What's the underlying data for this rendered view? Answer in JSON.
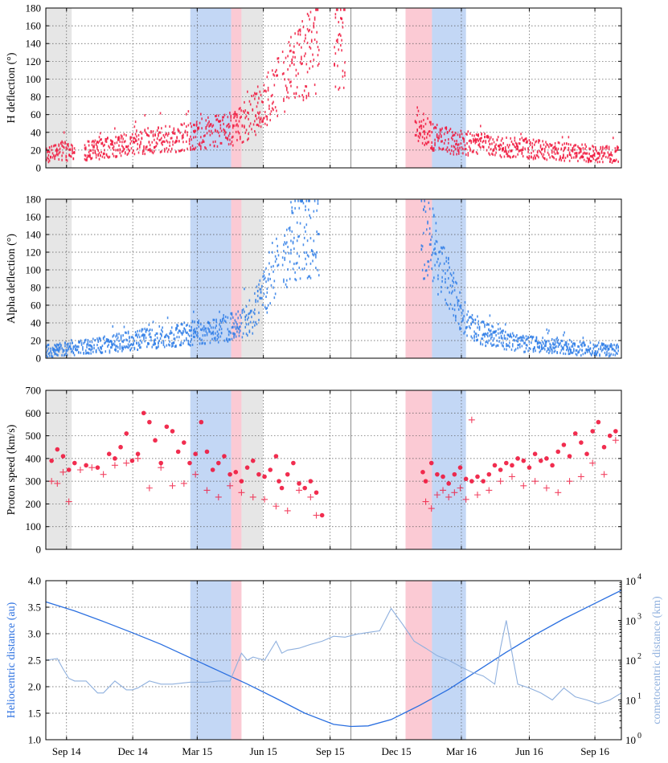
{
  "colors": {
    "proton": "#f0163c",
    "alpha": "#2e7de6",
    "helio_line": "#2a6fe0",
    "comet_line": "#8fb0de",
    "blue_band": "#bcd3f4",
    "pink_band": "#fbc4cf",
    "gray_band": "#e3e3e3",
    "perihelion_line": "#9a9a9a"
  },
  "chart_data": [
    {
      "type": "scatter",
      "panel": "h-deflection",
      "ylabel": "H deflection (°)",
      "ylim": [
        0,
        180
      ],
      "yticks": [
        "0",
        "20",
        "40",
        "60",
        "80",
        "100",
        "120",
        "140",
        "160",
        "180"
      ],
      "grid": true,
      "series": [
        {
          "color": "proton",
          "envelope": {
            "x": [
              0,
              0.03,
              0.04,
              0.06,
              0.1,
              0.15,
              0.2,
              0.25,
              0.28,
              0.31,
              0.33,
              0.36,
              0.38,
              0.41,
              0.44,
              0.47,
              0.48,
              0.5,
              0.53,
              0.55,
              0.57,
              0.59,
              0.61,
              0.63,
              0.65,
              0.67,
              0.7,
              0.75,
              0.8,
              0.85,
              0.9,
              0.95,
              0.99
            ],
            "y": [
              14,
              20,
              16,
              18,
              22,
              28,
              32,
              35,
              40,
              42,
              45,
              60,
              75,
              95,
              120,
              135,
              140,
              140,
              140,
              140,
              120,
              100,
              80,
              60,
              45,
              35,
              30,
              26,
              24,
              21,
              18,
              16,
              15
            ]
          },
          "gaps": [
            [
              0.05,
              0.065
            ],
            [
              0.405,
              0.41
            ],
            [
              0.475,
              0.5
            ],
            [
              0.52,
              0.64
            ]
          ]
        }
      ]
    },
    {
      "type": "scatter",
      "panel": "alpha-deflection",
      "ylabel": "Alpha deflection (°)",
      "ylim": [
        0,
        180
      ],
      "yticks": [
        "0",
        "20",
        "40",
        "60",
        "80",
        "100",
        "120",
        "140",
        "160",
        "180"
      ],
      "grid": true,
      "series": [
        {
          "color": "alpha",
          "envelope": {
            "x": [
              0,
              0.03,
              0.06,
              0.1,
              0.15,
              0.2,
              0.25,
              0.3,
              0.33,
              0.36,
              0.38,
              0.4,
              0.44,
              0.47,
              0.48,
              0.66,
              0.68,
              0.7,
              0.72,
              0.75,
              0.8,
              0.85,
              0.9,
              0.95,
              0.99
            ],
            "y": [
              8,
              10,
              12,
              15,
              20,
              24,
              28,
              32,
              36,
              50,
              80,
              110,
              140,
              140,
              135,
              140,
              110,
              80,
              50,
              30,
              20,
              15,
              12,
              10,
              9
            ]
          },
          "gaps": [
            [
              0.405,
              0.41
            ],
            [
              0.475,
              0.65
            ]
          ]
        }
      ]
    },
    {
      "type": "scatter",
      "panel": "proton-speed",
      "ylabel": "Proton speed (km/s)",
      "ylim": [
        0,
        700
      ],
      "yticks": [
        "0",
        "100",
        "200",
        "300",
        "400",
        "500",
        "600",
        "700"
      ],
      "grid": true,
      "series": [
        {
          "name": "",
          "marker": "circle",
          "color": "proton",
          "x": [
            0.01,
            0.02,
            0.03,
            0.04,
            0.05,
            0.07,
            0.09,
            0.11,
            0.12,
            0.13,
            0.14,
            0.15,
            0.16,
            0.17,
            0.18,
            0.19,
            0.2,
            0.21,
            0.22,
            0.23,
            0.24,
            0.25,
            0.26,
            0.27,
            0.28,
            0.29,
            0.3,
            0.31,
            0.32,
            0.33,
            0.34,
            0.35,
            0.36,
            0.37,
            0.38,
            0.39,
            0.4,
            0.405,
            0.41,
            0.42,
            0.43,
            0.44,
            0.45,
            0.46,
            0.47,
            0.48,
            0.655,
            0.66,
            0.67,
            0.68,
            0.69,
            0.7,
            0.71,
            0.72,
            0.73,
            0.74,
            0.75,
            0.76,
            0.77,
            0.78,
            0.79,
            0.8,
            0.81,
            0.82,
            0.83,
            0.84,
            0.85,
            0.86,
            0.87,
            0.88,
            0.89,
            0.9,
            0.91,
            0.92,
            0.93,
            0.94,
            0.95,
            0.96,
            0.97,
            0.98,
            0.99
          ],
          "y": [
            390,
            440,
            410,
            350,
            380,
            370,
            360,
            420,
            400,
            450,
            510,
            390,
            420,
            600,
            560,
            480,
            380,
            540,
            520,
            430,
            470,
            380,
            420,
            560,
            430,
            350,
            380,
            410,
            330,
            340,
            300,
            360,
            390,
            330,
            320,
            350,
            410,
            300,
            270,
            330,
            380,
            290,
            270,
            300,
            250,
            150,
            340,
            300,
            380,
            330,
            320,
            290,
            330,
            360,
            310,
            300,
            320,
            300,
            330,
            370,
            350,
            380,
            370,
            400,
            390,
            360,
            420,
            390,
            400,
            370,
            430,
            460,
            410,
            510,
            470,
            420,
            520,
            560,
            450,
            500,
            520
          ]
        },
        {
          "name": "",
          "marker": "plus",
          "color": "proton",
          "x": [
            0.01,
            0.02,
            0.03,
            0.04,
            0.06,
            0.08,
            0.1,
            0.12,
            0.14,
            0.16,
            0.18,
            0.2,
            0.22,
            0.24,
            0.26,
            0.28,
            0.3,
            0.32,
            0.34,
            0.36,
            0.38,
            0.4,
            0.42,
            0.44,
            0.46,
            0.47,
            0.66,
            0.67,
            0.68,
            0.69,
            0.7,
            0.71,
            0.72,
            0.73,
            0.74,
            0.75,
            0.77,
            0.79,
            0.81,
            0.83,
            0.85,
            0.87,
            0.89,
            0.91,
            0.93,
            0.95,
            0.97,
            0.99
          ],
          "y": [
            300,
            290,
            340,
            210,
            350,
            360,
            330,
            370,
            380,
            400,
            270,
            360,
            280,
            290,
            330,
            260,
            230,
            280,
            250,
            230,
            220,
            190,
            170,
            260,
            230,
            150,
            210,
            180,
            240,
            260,
            230,
            250,
            270,
            220,
            570,
            240,
            260,
            300,
            320,
            280,
            300,
            270,
            250,
            300,
            320,
            380,
            330,
            480
          ]
        }
      ]
    },
    {
      "type": "line",
      "panel": "distances",
      "ylabel": "Heliocentric distance (au)",
      "ylabel_right": "cometocentric distance (km)",
      "ylim": [
        1.0,
        4.0
      ],
      "yticks": [
        "1.0",
        "1.5",
        "2.0",
        "2.5",
        "3.0",
        "3.5",
        "4.0"
      ],
      "ylim_right": [
        1,
        10000
      ],
      "yscale_right": "log",
      "yticks_right": [
        "10",
        "10",
        "10",
        "10",
        "10"
      ],
      "yticks_right_exp": [
        "0",
        "1",
        "2",
        "3",
        "4"
      ],
      "xticks": [
        "Sep 14",
        "Dec 14",
        "Mar 15",
        "Jun 15",
        "Sep 15",
        "Dec 15",
        "Mar 16",
        "Jun 16",
        "Sep 16"
      ],
      "grid": true,
      "series": [
        {
          "axis": "left",
          "color": "helio_line",
          "x": [
            0.0,
            0.05,
            0.1,
            0.15,
            0.2,
            0.25,
            0.3,
            0.35,
            0.4,
            0.45,
            0.5,
            0.53,
            0.56,
            0.6,
            0.65,
            0.7,
            0.75,
            0.8,
            0.85,
            0.9,
            0.95,
            1.0
          ],
          "y": [
            3.6,
            3.43,
            3.23,
            3.02,
            2.8,
            2.55,
            2.3,
            2.05,
            1.78,
            1.5,
            1.29,
            1.25,
            1.26,
            1.38,
            1.65,
            1.95,
            2.3,
            2.65,
            2.98,
            3.28,
            3.55,
            3.82
          ]
        },
        {
          "axis": "right",
          "color": "comet_line",
          "x": [
            0.0,
            0.02,
            0.03,
            0.04,
            0.05,
            0.07,
            0.09,
            0.1,
            0.12,
            0.14,
            0.15,
            0.16,
            0.18,
            0.2,
            0.22,
            0.25,
            0.28,
            0.3,
            0.32,
            0.34,
            0.35,
            0.36,
            0.38,
            0.4,
            0.41,
            0.42,
            0.44,
            0.46,
            0.48,
            0.5,
            0.52,
            0.54,
            0.56,
            0.58,
            0.6,
            0.62,
            0.64,
            0.66,
            0.68,
            0.7,
            0.72,
            0.74,
            0.76,
            0.78,
            0.79,
            0.8,
            0.81,
            0.82,
            0.84,
            0.86,
            0.88,
            0.9,
            0.92,
            0.94,
            0.96,
            0.98,
            1.0
          ],
          "y": [
            100,
            110,
            60,
            35,
            30,
            30,
            15,
            15,
            30,
            18,
            18,
            20,
            30,
            25,
            25,
            28,
            28,
            30,
            30,
            150,
            100,
            120,
            100,
            300,
            150,
            180,
            200,
            250,
            300,
            400,
            380,
            450,
            500,
            550,
            2000,
            800,
            300,
            200,
            130,
            100,
            70,
            50,
            40,
            25,
            200,
            1000,
            150,
            25,
            20,
            15,
            10,
            20,
            12,
            10,
            8,
            10,
            15
          ]
        }
      ]
    }
  ],
  "bands": [
    {
      "color": "gray_band",
      "panels": [
        0,
        1,
        2
      ],
      "from": 0.0,
      "to": 0.045
    },
    {
      "color": "blue_band",
      "panels": [
        0,
        1,
        2,
        3
      ],
      "from": 0.251,
      "to": 0.322
    },
    {
      "color": "pink_band",
      "panels": [
        0,
        1,
        2,
        3
      ],
      "from": 0.322,
      "to": 0.34
    },
    {
      "color": "gray_band",
      "panels": [
        0,
        1,
        2
      ],
      "from": 0.34,
      "to": 0.377
    },
    {
      "color": "pink_band",
      "panels": [
        0,
        1,
        2,
        3
      ],
      "from": 0.625,
      "to": 0.671
    },
    {
      "color": "blue_band",
      "panels": [
        0,
        1,
        2,
        3
      ],
      "from": 0.671,
      "to": 0.73
    }
  ],
  "perihelion_x": 0.53
}
